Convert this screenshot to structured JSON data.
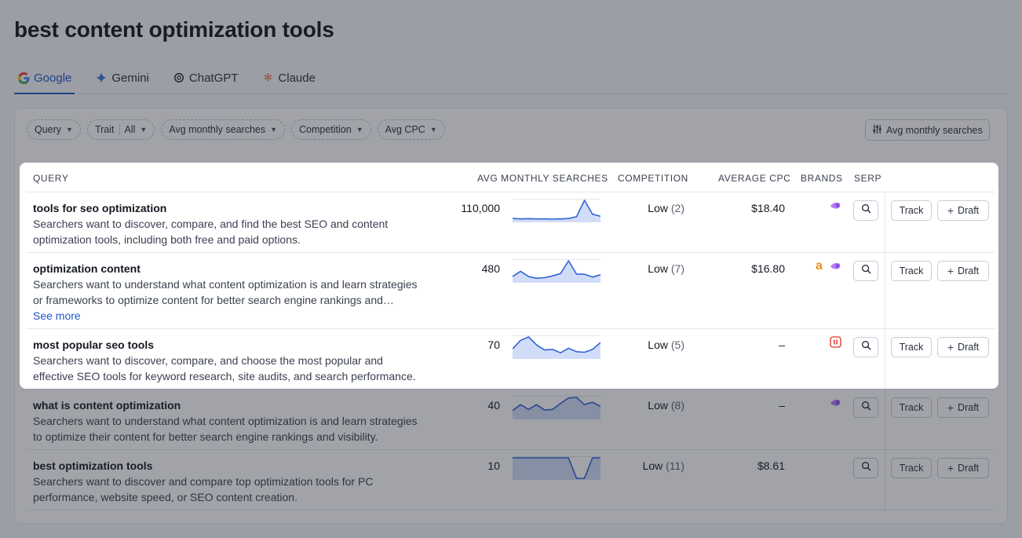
{
  "page": {
    "title": "best content optimization tools"
  },
  "tabs": [
    {
      "label": "Google",
      "icon": "google-icon",
      "active": true
    },
    {
      "label": "Gemini",
      "icon": "gemini-icon",
      "active": false
    },
    {
      "label": "ChatGPT",
      "icon": "chatgpt-icon",
      "active": false
    },
    {
      "label": "Claude",
      "icon": "claude-icon",
      "active": false
    }
  ],
  "filters": {
    "query": "Query",
    "trait": "Trait",
    "trait_value": "All",
    "avg_monthly_searches": "Avg monthly searches",
    "competition": "Competition",
    "avg_cpc": "Avg CPC"
  },
  "sort": {
    "label": "Avg monthly searches"
  },
  "columns": {
    "query": "Query",
    "avg_monthly_searches": "Avg monthly searches",
    "competition": "Competition",
    "average_cpc": "Average CPC",
    "brands": "Brands",
    "serp": "SERP"
  },
  "actions": {
    "track": "Track",
    "draft": "Draft"
  },
  "rows": [
    {
      "title": "tools for seo optimization",
      "desc1": "Searchers want to discover, compare, and find the best SEO and content",
      "desc2": "optimization tools, including both free and paid options.",
      "see_more": "",
      "searches": "110,000",
      "trend": [
        0.3,
        0.25,
        0.28,
        0.25,
        0.25,
        0.22,
        0.25,
        0.3,
        0.55,
        2.8,
        0.9,
        0.6
      ],
      "competition": "Low",
      "competition_count": "(2)",
      "cpc": "$18.40",
      "brands": [
        "purple-brand-icon"
      ]
    },
    {
      "title": "optimization content",
      "desc1": "Searchers want to understand what content optimization is and learn strategies",
      "desc2": "or frameworks to optimize content for better search engine rankings and…",
      "see_more": "See more",
      "searches": "480",
      "trend": [
        0.8,
        1.7,
        0.8,
        0.5,
        0.6,
        0.9,
        1.3,
        3.5,
        1.2,
        1.2,
        0.7,
        1.1
      ],
      "competition": "Low",
      "competition_count": "(7)",
      "cpc": "$16.80",
      "brands": [
        "orange-a-brand-icon",
        "purple-brand-icon"
      ]
    },
    {
      "title": "most popular seo tools",
      "desc1": "Searchers want to discover, compare, and choose the most popular and",
      "desc2": "effective SEO tools for keyword research, site audits, and search performance.",
      "see_more": "",
      "searches": "70",
      "trend": [
        1.5,
        3.0,
        3.6,
        2.2,
        1.3,
        1.4,
        0.8,
        1.6,
        1.0,
        0.9,
        1.4,
        2.6
      ],
      "competition": "Low",
      "competition_count": "(5)",
      "cpc": "–",
      "brands": [
        "red-square-brand-icon"
      ]
    },
    {
      "title": "what is content optimization",
      "desc1": "Searchers want to understand what content optimization is and learn strategies",
      "desc2": "to optimize their content for better search engine rankings and visibility.",
      "see_more": "",
      "searches": "40",
      "trend": [
        1.2,
        2.2,
        1.4,
        2.2,
        1.3,
        1.4,
        2.4,
        3.3,
        3.4,
        2.2,
        2.6,
        1.9
      ],
      "competition": "Low",
      "competition_count": "(8)",
      "cpc": "–",
      "brands": [
        "purple-brand-icon"
      ]
    },
    {
      "title": "best optimization tools",
      "desc1": "Searchers want to discover and compare top optimization tools for PC",
      "desc2": "performance, website speed, or SEO content creation.",
      "see_more": "",
      "searches": "10",
      "trend": [
        4,
        4,
        4,
        4,
        4,
        4,
        4,
        4,
        0,
        0,
        4,
        4
      ],
      "competition": "Low",
      "competition_count": "(11)",
      "cpc": "$8.61",
      "brands": []
    }
  ],
  "colors": {
    "accent": "#1f57c8",
    "spark_line": "#2f64d6",
    "spark_fill": "#c9d7f7"
  }
}
